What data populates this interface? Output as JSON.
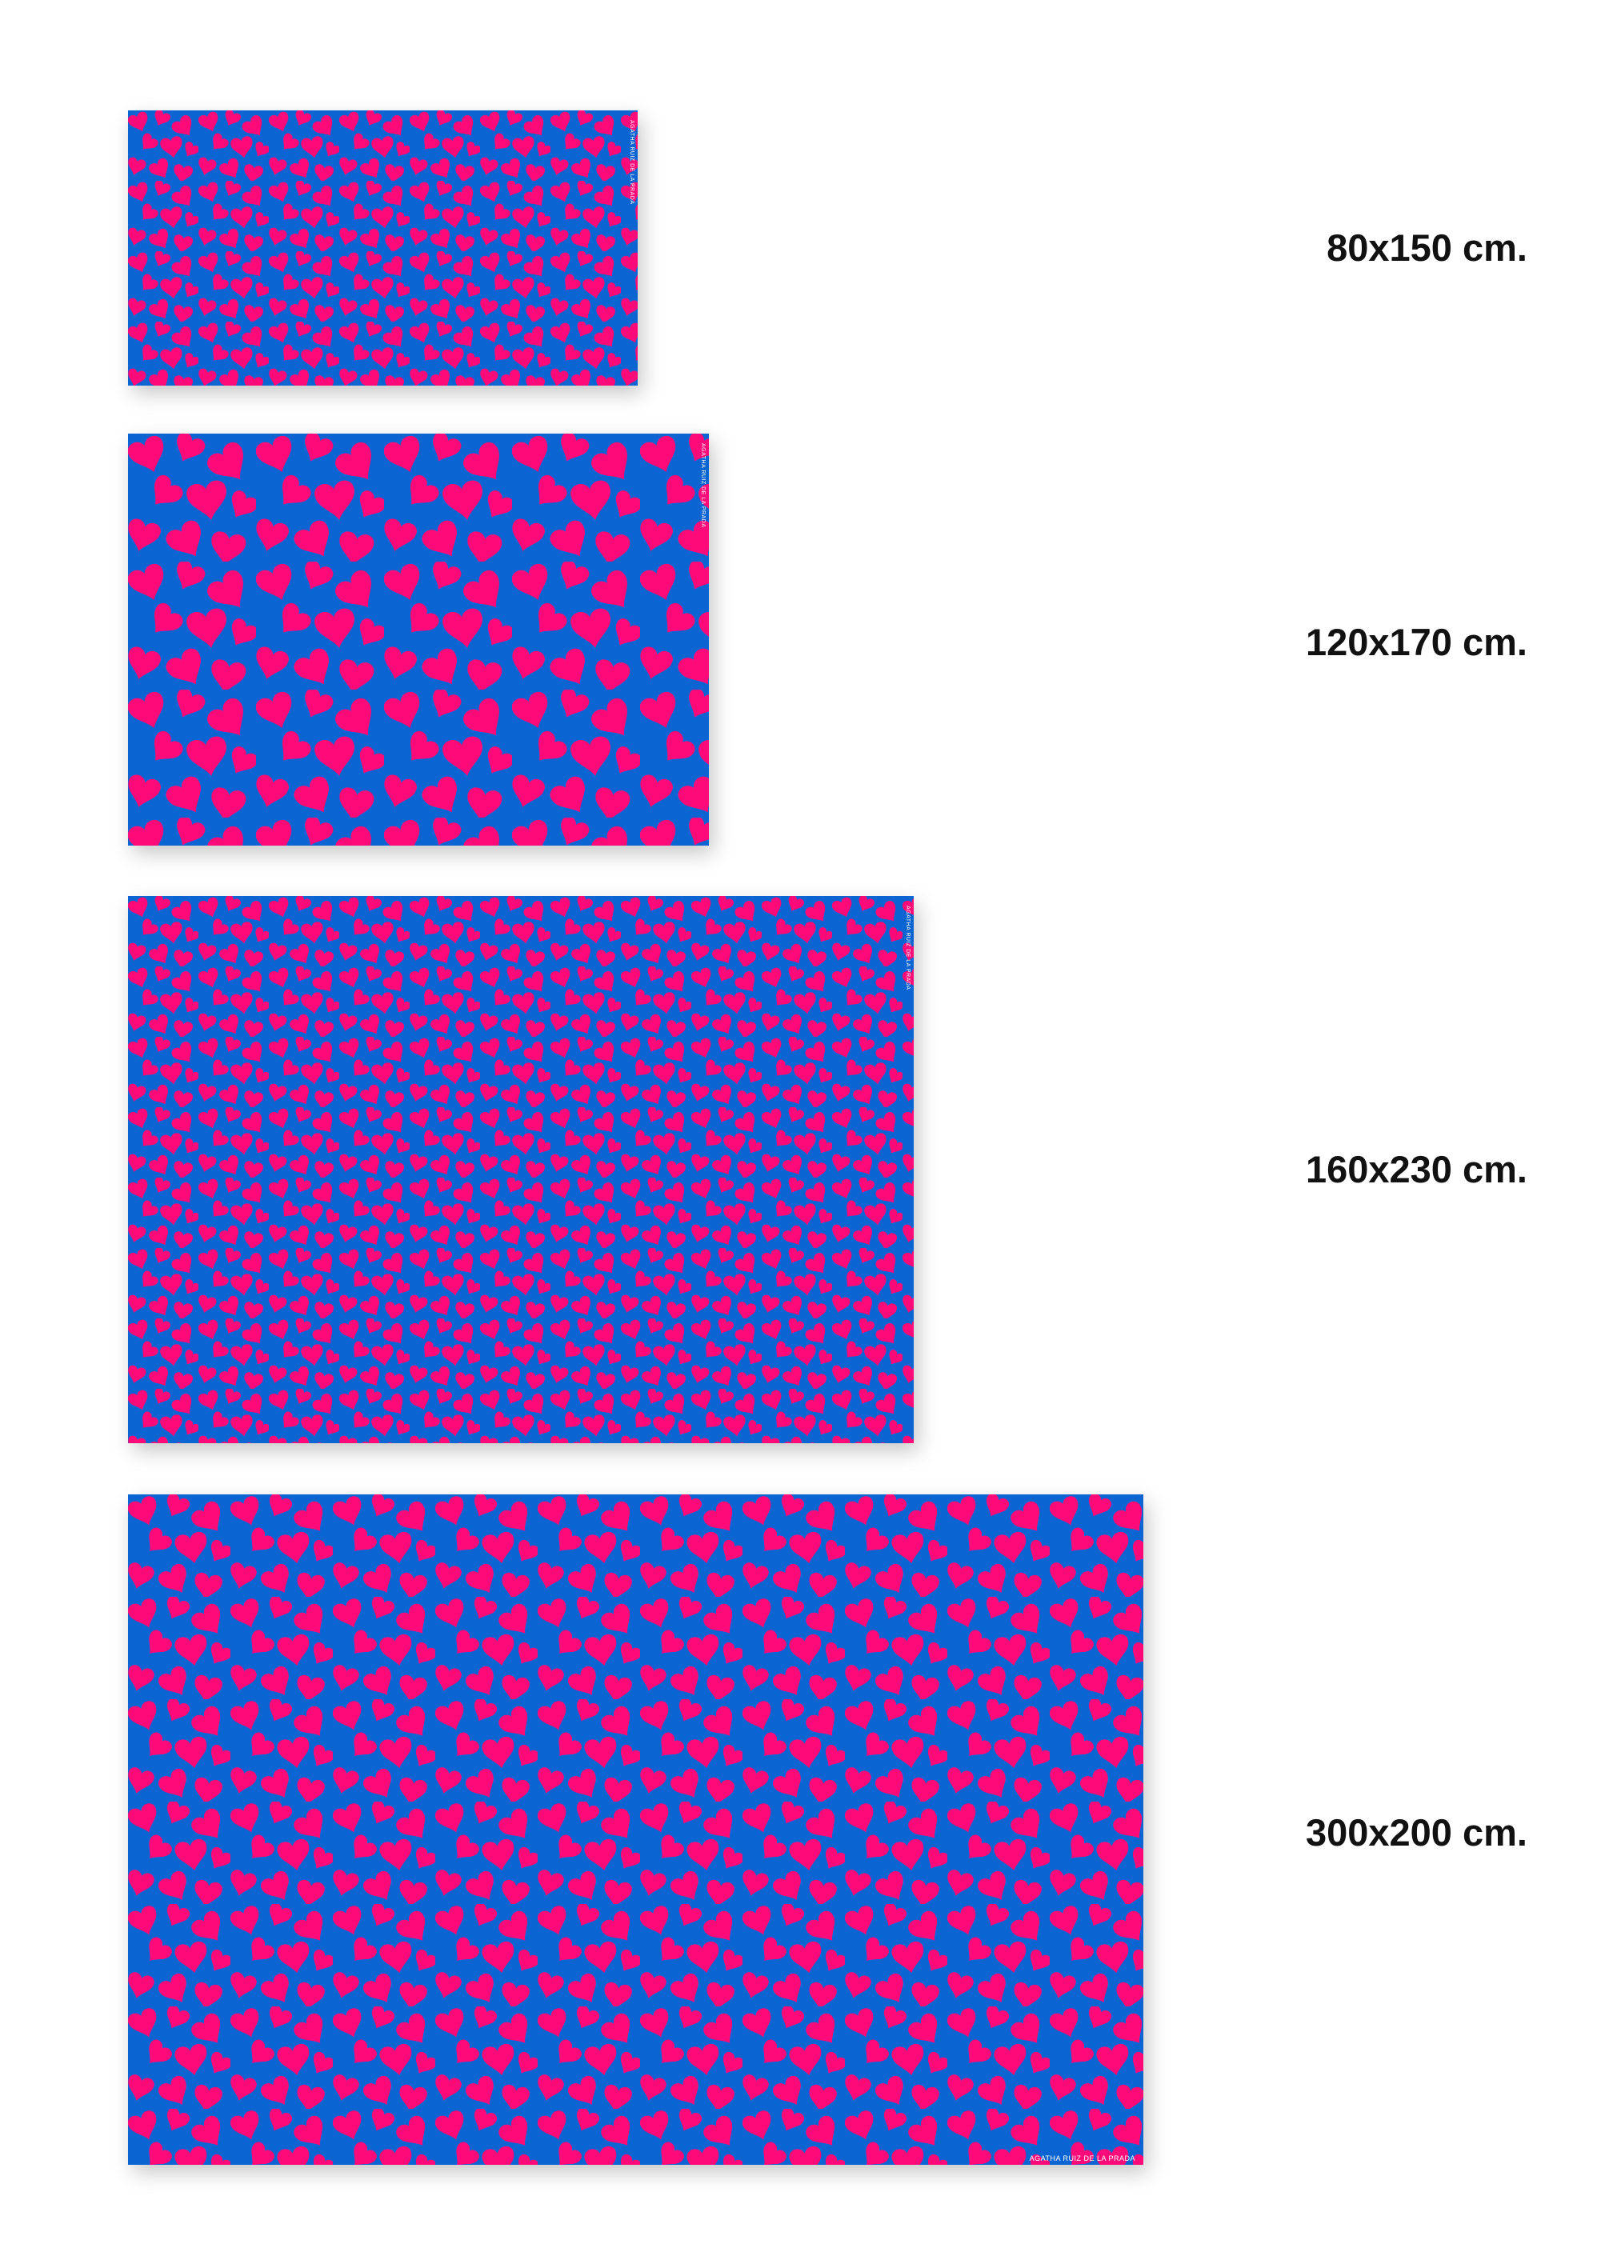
{
  "colors": {
    "background": "#0a64d2",
    "hearts": "#ff0a78"
  },
  "brand": "AGATHA RUIZ DE LA PRADA",
  "rugs": [
    {
      "label": "80x150 cm.",
      "pattern_scale": 0.55
    },
    {
      "label": "120x170 cm.",
      "pattern_scale": 1.0
    },
    {
      "label": "160x230 cm.",
      "pattern_scale": 0.55
    },
    {
      "label": "300x200 cm.",
      "pattern_scale": 0.8
    }
  ]
}
